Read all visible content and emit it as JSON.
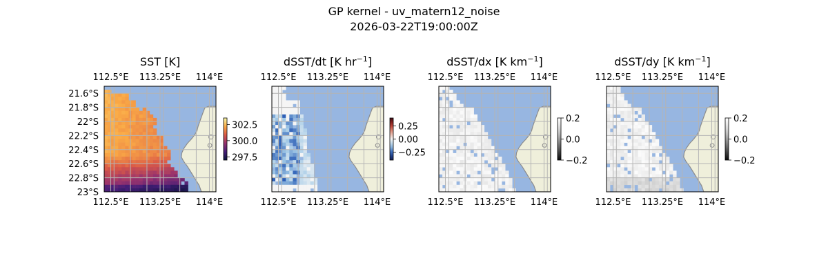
{
  "figure": {
    "title_line1": "GP kernel - uv_matern12_noise",
    "title_line2": "2026-03-22T19:00:00Z"
  },
  "colors": {
    "ocean": "#97b6e1",
    "land": "#efefdb",
    "coast": "#8c8c8c",
    "grid": "#b4b4b4"
  },
  "panels": [
    {
      "title": "SST [K]",
      "title_sup": "",
      "title_end": "",
      "top_ticks": [
        "112.5°E",
        "113.25°E",
        "114°E"
      ],
      "bottom_ticks": [
        "112.5°E",
        "113.25°E",
        "114°E"
      ],
      "left_ticks": [
        "21.6°S",
        "21.8°S",
        "22°S",
        "22.2°S",
        "22.4°S",
        "22.6°S",
        "22.8°S",
        "23°S"
      ],
      "colorbar": {
        "cmap": "thermal",
        "ticks": [
          "302.5",
          "300.0",
          "297.5"
        ],
        "tick_values": [
          302.5,
          300.0,
          297.5
        ],
        "range": [
          297.0,
          303.5
        ]
      }
    },
    {
      "title": "dSST/dt [K hr",
      "title_sup": "−1",
      "title_end": "]",
      "top_ticks": [
        "112.5°E",
        "113.25°E",
        "114°E"
      ],
      "bottom_ticks": [
        "112.5°E",
        "113.25°E",
        "114°E"
      ],
      "left_ticks": [],
      "colorbar": {
        "cmap": "balance",
        "ticks": [
          "0.25",
          "0.00",
          "−0.25"
        ],
        "tick_values": [
          0.25,
          0.0,
          -0.25
        ],
        "range": [
          -0.4,
          0.4
        ]
      }
    },
    {
      "title": "dSST/dx [K km",
      "title_sup": "−1",
      "title_end": "]",
      "top_ticks": [
        "112.5°E",
        "113.25°E",
        "114°E"
      ],
      "bottom_ticks": [
        "112.5°E",
        "113.25°E",
        "114°E"
      ],
      "left_ticks": [],
      "colorbar": {
        "cmap": "gray",
        "ticks": [
          "0.2",
          "0.0",
          "−0.2"
        ],
        "tick_values": [
          0.2,
          0.0,
          -0.2
        ],
        "range": [
          -0.2,
          0.2
        ]
      }
    },
    {
      "title": "dSST/dy [K km",
      "title_sup": "−1",
      "title_end": "]",
      "top_ticks": [
        "112.5°E",
        "113.25°E",
        "114°E"
      ],
      "bottom_ticks": [
        "112.5°E",
        "113.25°E",
        "114°E"
      ],
      "left_ticks": [],
      "colorbar": {
        "cmap": "gray",
        "ticks": [
          "0.2",
          "0.0",
          "−0.2"
        ],
        "tick_values": [
          0.2,
          0.0,
          -0.2
        ],
        "range": [
          -0.2,
          0.2
        ]
      }
    }
  ],
  "chart_data": {
    "type": "heatmap",
    "title": "GP kernel - uv_matern12_noise",
    "subtitle": "2026-03-22T19:00:00Z",
    "lon_range": [
      112.4,
      114.1
    ],
    "lat_range": [
      -23.0,
      -21.5
    ],
    "lon_ticks": [
      112.5,
      113.25,
      114.0
    ],
    "lat_ticks": [
      -21.6,
      -21.8,
      -22.0,
      -22.2,
      -22.4,
      -22.6,
      -22.8,
      -23.0
    ],
    "grid": true,
    "subplots": [
      {
        "variable": "SST",
        "unit": "K",
        "colorbar_range": [
          297.0,
          303.5
        ],
        "value_west": 302.5,
        "value_southeast": 298.3
      },
      {
        "variable": "dSST/dt",
        "unit": "K hr-1",
        "colorbar_range": [
          -0.4,
          0.4
        ]
      },
      {
        "variable": "dSST/dx",
        "unit": "K km-1",
        "colorbar_range": [
          -0.2,
          0.2
        ]
      },
      {
        "variable": "dSST/dy",
        "unit": "K km-1",
        "colorbar_range": [
          -0.2,
          0.2
        ]
      }
    ]
  }
}
